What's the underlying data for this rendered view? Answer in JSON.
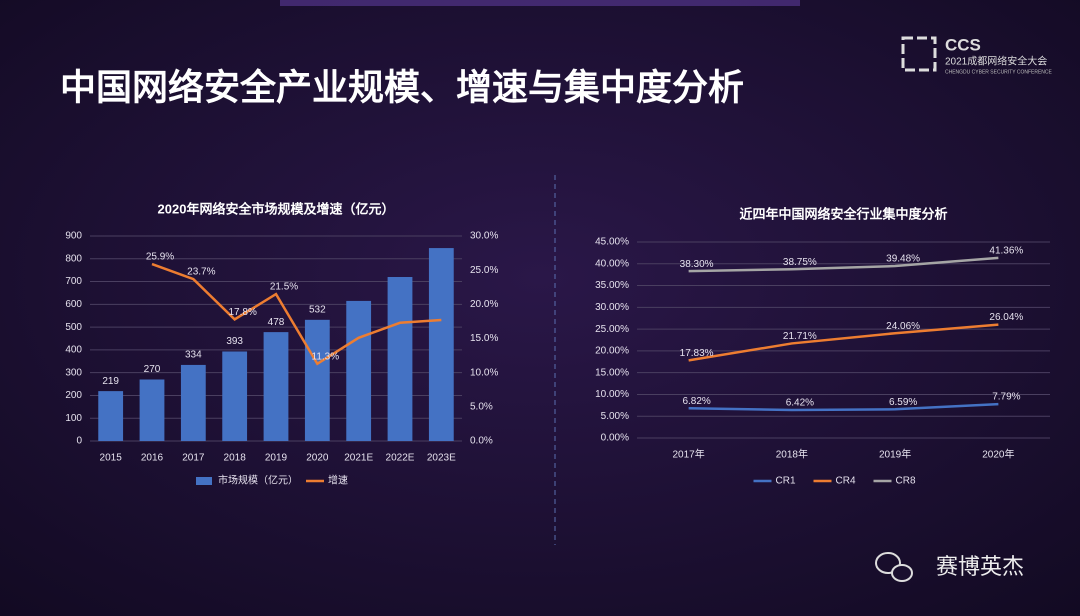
{
  "header": {
    "title": "中国网络安全产业规模、增速与集中度分析"
  },
  "logo": {
    "mark": "CCS",
    "name": "2021成都网络安全大会",
    "subtitle": "CHENGDU CYBER SECURITY CONFERENCE"
  },
  "watermark": "赛博英杰",
  "chart_data": [
    {
      "type": "bar",
      "title": "2020年网络安全市场规模及增速（亿元）",
      "categories": [
        "2015",
        "2016",
        "2017",
        "2018",
        "2019",
        "2020",
        "2021E",
        "2022E",
        "2023E"
      ],
      "series": [
        {
          "name": "市场规模（亿元）",
          "color": "#4472c4",
          "values": [
            219,
            270,
            334,
            393,
            478,
            532,
            615,
            720,
            847
          ],
          "value_labels": [
            "219",
            "270",
            "334",
            "393",
            "478",
            "532",
            null,
            null,
            null
          ]
        },
        {
          "name": "增速",
          "type": "line",
          "axis": "y2",
          "color": "#ed7d31",
          "values": [
            null,
            25.9,
            23.7,
            17.8,
            21.5,
            11.3,
            15.1,
            17.3,
            17.7
          ],
          "value_labels": [
            null,
            "25.9%",
            "23.7%",
            "17.8%",
            "21.5%",
            "11.3%",
            null,
            null,
            null
          ]
        }
      ],
      "ylim": [
        0,
        900
      ],
      "yticks": [
        0,
        100,
        200,
        300,
        400,
        500,
        600,
        700,
        800,
        900
      ],
      "y2lim": [
        0,
        30
      ],
      "y2ticks": [
        {
          "value": 0,
          "label": "0.0%"
        },
        {
          "value": 5,
          "label": "5.0%"
        },
        {
          "value": 10,
          "label": "10.0%"
        },
        {
          "value": 15,
          "label": "15.0%"
        },
        {
          "value": 20,
          "label": "20.0%"
        },
        {
          "value": 25,
          "label": "25.0%"
        },
        {
          "value": 30,
          "label": "30.0%"
        }
      ],
      "grid": true,
      "legend": "bottom"
    },
    {
      "type": "line",
      "title": "近四年中国网络安全行业集中度分析",
      "categories": [
        "2017年",
        "2018年",
        "2019年",
        "2020年"
      ],
      "series": [
        {
          "name": "CR1",
          "color": "#4472c4",
          "values": [
            6.82,
            6.42,
            6.59,
            7.79
          ],
          "value_labels": [
            "6.82%",
            "6.42%",
            "6.59%",
            "7.79%"
          ]
        },
        {
          "name": "CR4",
          "color": "#ed7d31",
          "values": [
            17.83,
            21.71,
            24.06,
            26.04
          ],
          "value_labels": [
            "17.83%",
            "21.71%",
            "24.06%",
            "26.04%"
          ]
        },
        {
          "name": "CR8",
          "color": "#a5a5a5",
          "values": [
            38.3,
            38.75,
            39.48,
            41.36
          ],
          "value_labels": [
            "38.30%",
            "38.75%",
            "39.48%",
            "41.36%"
          ]
        }
      ],
      "ylim": [
        0,
        45
      ],
      "yticks": [
        {
          "value": 0,
          "label": "0.00%"
        },
        {
          "value": 5,
          "label": "5.00%"
        },
        {
          "value": 10,
          "label": "10.00%"
        },
        {
          "value": 15,
          "label": "15.00%"
        },
        {
          "value": 20,
          "label": "20.00%"
        },
        {
          "value": 25,
          "label": "25.00%"
        },
        {
          "value": 30,
          "label": "30.00%"
        },
        {
          "value": 35,
          "label": "35.00%"
        },
        {
          "value": 40,
          "label": "40.00%"
        },
        {
          "value": 45,
          "label": "45.00%"
        }
      ],
      "grid": true,
      "legend": "bottom"
    }
  ]
}
